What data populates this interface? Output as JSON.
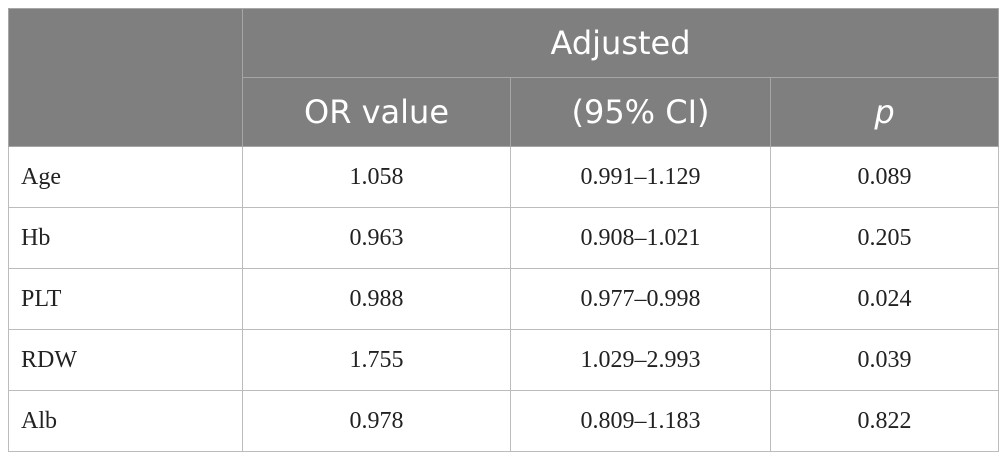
{
  "table": {
    "group_header": "Adjusted",
    "sub_headers": {
      "or_value": "OR value",
      "ci": "(95% CI)",
      "p": "p"
    },
    "rows": [
      {
        "label": "Age",
        "or": "1.058",
        "ci": "0.991–1.129",
        "p": "0.089"
      },
      {
        "label": "Hb",
        "or": "0.963",
        "ci": "0.908–1.021",
        "p": "0.205"
      },
      {
        "label": "PLT",
        "or": "0.988",
        "ci": "0.977–0.998",
        "p": "0.024"
      },
      {
        "label": "RDW",
        "or": "1.755",
        "ci": "1.029–2.993",
        "p": "0.039"
      },
      {
        "label": "Alb",
        "or": "0.978",
        "ci": "0.809–1.183",
        "p": "0.822"
      }
    ]
  },
  "colors": {
    "header_bg": "#7f7f7f",
    "header_text": "#ffffff",
    "grid": "#bcbcbc"
  }
}
